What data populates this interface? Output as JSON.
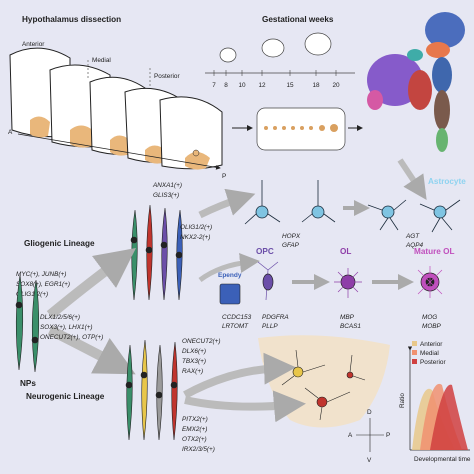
{
  "dissection": {
    "title": "Hypothalamus dissection",
    "regions": [
      "Anterior",
      "Medial",
      "Posterior"
    ],
    "axis": [
      "A",
      "P"
    ]
  },
  "gestation": {
    "title": "Gestational weeks",
    "weeks": [
      "7",
      "8",
      "10",
      "12",
      "15",
      "18",
      "20"
    ]
  },
  "gliogenic": {
    "title": "Gliogenic Lineage",
    "np_markers": [
      "MYC(+), JUNB(+)",
      "SOX8(+), EGR1(+)",
      "OLIG1/2(+)"
    ],
    "astro_markers": [
      "ANXA1(+)",
      "GLIS3(+)"
    ],
    "olig_markers": [
      "OLIG1/2(+)",
      "NKX2-2(+)"
    ]
  },
  "cells": {
    "astrocyte": {
      "label": "Astrocyte",
      "early": [
        "HOPX",
        "GFAP"
      ],
      "late": [
        "AGT",
        "AQP4"
      ]
    },
    "ependy": {
      "label": "Ependy",
      "markers": [
        "CCDC153",
        "LRTOMT"
      ]
    },
    "opc": {
      "label": "OPC",
      "markers": [
        "PDGFRA",
        "PLLP"
      ]
    },
    "ol": {
      "label": "OL",
      "markers": [
        "MBP",
        "BCAS1"
      ]
    },
    "mature_ol": {
      "label": "Mature OL",
      "markers": [
        "MOG",
        "MOBP"
      ]
    }
  },
  "nps": {
    "label": "NPs",
    "neuro_markers": [
      "DLX1/2/5/6(+)",
      "SOX3(+), LHX1(+)",
      "ONECUT2(+), OTP(+)"
    ]
  },
  "neurogenic": {
    "title": "Neurogenic Lineage",
    "markers_a": [
      "ONECUT2(+)",
      "DLX6(+)",
      "TBX3(+)",
      "RAX(+)"
    ],
    "markers_b": [
      "PITX2(+)",
      "EMX2(+)",
      "OTX2(+)",
      "IRX2/3/5(+)"
    ]
  },
  "plot": {
    "legend": [
      "Anterior",
      "Medial",
      "Posterior"
    ],
    "y_label": "Ratio",
    "x_label": "Developmental time"
  },
  "compass": [
    "D",
    "V",
    "A",
    "P"
  ]
}
